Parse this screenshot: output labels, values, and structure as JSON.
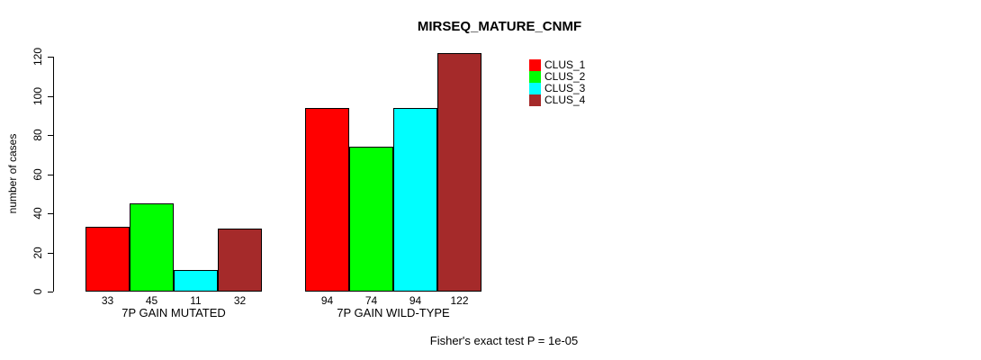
{
  "chart_data": {
    "type": "bar",
    "title": "MIRSEQ_MATURE_CNMF",
    "ylabel": "number of cases",
    "xlabel": "",
    "groups": [
      "7P GAIN MUTATED",
      "7P GAIN WILD-TYPE"
    ],
    "series": [
      {
        "name": "CLUS_1",
        "color": "#ff0000",
        "values": [
          33,
          94
        ]
      },
      {
        "name": "CLUS_2",
        "color": "#00ff00",
        "values": [
          45,
          74
        ]
      },
      {
        "name": "CLUS_3",
        "color": "#00ffff",
        "values": [
          11,
          94
        ]
      },
      {
        "name": "CLUS_4",
        "color": "#a52a2a",
        "values": [
          32,
          122
        ]
      }
    ],
    "bar_value_labels": [
      [
        "33",
        "45",
        "11",
        "32"
      ],
      [
        "94",
        "74",
        "94",
        "122"
      ]
    ],
    "y_ticks": [
      0,
      20,
      40,
      60,
      80,
      100,
      120
    ],
    "ylim": [
      0,
      130
    ],
    "grid": false,
    "legend_position": "top-right",
    "bar_border_color": "#000000",
    "footnote": "Fisher's exact test P = 1e-05"
  }
}
